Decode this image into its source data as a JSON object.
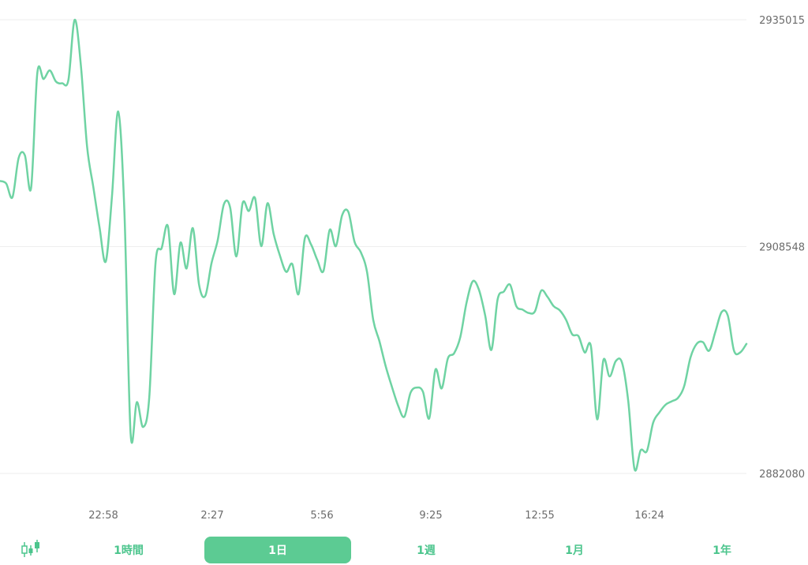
{
  "chart_data": {
    "type": "line",
    "y_ticks": [
      "2935015",
      "2908548",
      "2882080"
    ],
    "x_ticks": [
      "22:58",
      "2:27",
      "5:56",
      "9:25",
      "12:55",
      "16:24"
    ],
    "ylim": [
      2882080,
      2935015
    ],
    "grid": true,
    "color": "#6fd3a3",
    "values": [
      2916200,
      2915900,
      2914300,
      2918900,
      2919200,
      2915400,
      2928800,
      2928100,
      2929100,
      2927800,
      2927600,
      2928000,
      2935000,
      2929700,
      2920200,
      2915500,
      2910800,
      2906800,
      2914400,
      2924300,
      2912600,
      2886700,
      2890400,
      2887500,
      2891000,
      2906600,
      2908400,
      2910900,
      2903000,
      2909000,
      2906000,
      2910700,
      2904100,
      2902800,
      2906600,
      2909300,
      2913500,
      2913100,
      2907400,
      2913600,
      2912700,
      2914200,
      2908600,
      2913600,
      2910000,
      2907500,
      2905600,
      2906500,
      2903000,
      2909500,
      2908800,
      2907000,
      2905700,
      2910500,
      2908600,
      2912200,
      2912600,
      2909100,
      2907900,
      2905600,
      2900000,
      2897500,
      2894600,
      2892200,
      2890000,
      2888700,
      2891500,
      2892100,
      2891600,
      2888500,
      2894200,
      2892000,
      2895500,
      2896100,
      2898000,
      2902000,
      2904500,
      2903500,
      2900500,
      2896500,
      2902400,
      2903300,
      2904100,
      2901600,
      2901200,
      2900800,
      2901000,
      2903400,
      2902700,
      2901600,
      2901100,
      2900000,
      2898300,
      2898100,
      2896200,
      2896900,
      2888400,
      2895300,
      2893400,
      2895200,
      2895000,
      2890500,
      2882600,
      2884800,
      2884700,
      2888000,
      2889200,
      2890100,
      2890500,
      2890900,
      2892300,
      2895600,
      2897200,
      2897400,
      2896400,
      2898600,
      2900900,
      2900500,
      2896400,
      2896200,
      2897200
    ]
  },
  "toolbar": {
    "candle_icon": "candlestick-icon",
    "ranges": [
      "1時間",
      "1日",
      "1週",
      "1月",
      "1年"
    ],
    "active_index": 1,
    "accent": "#5ccb93",
    "text_color": "#4cc58d"
  }
}
